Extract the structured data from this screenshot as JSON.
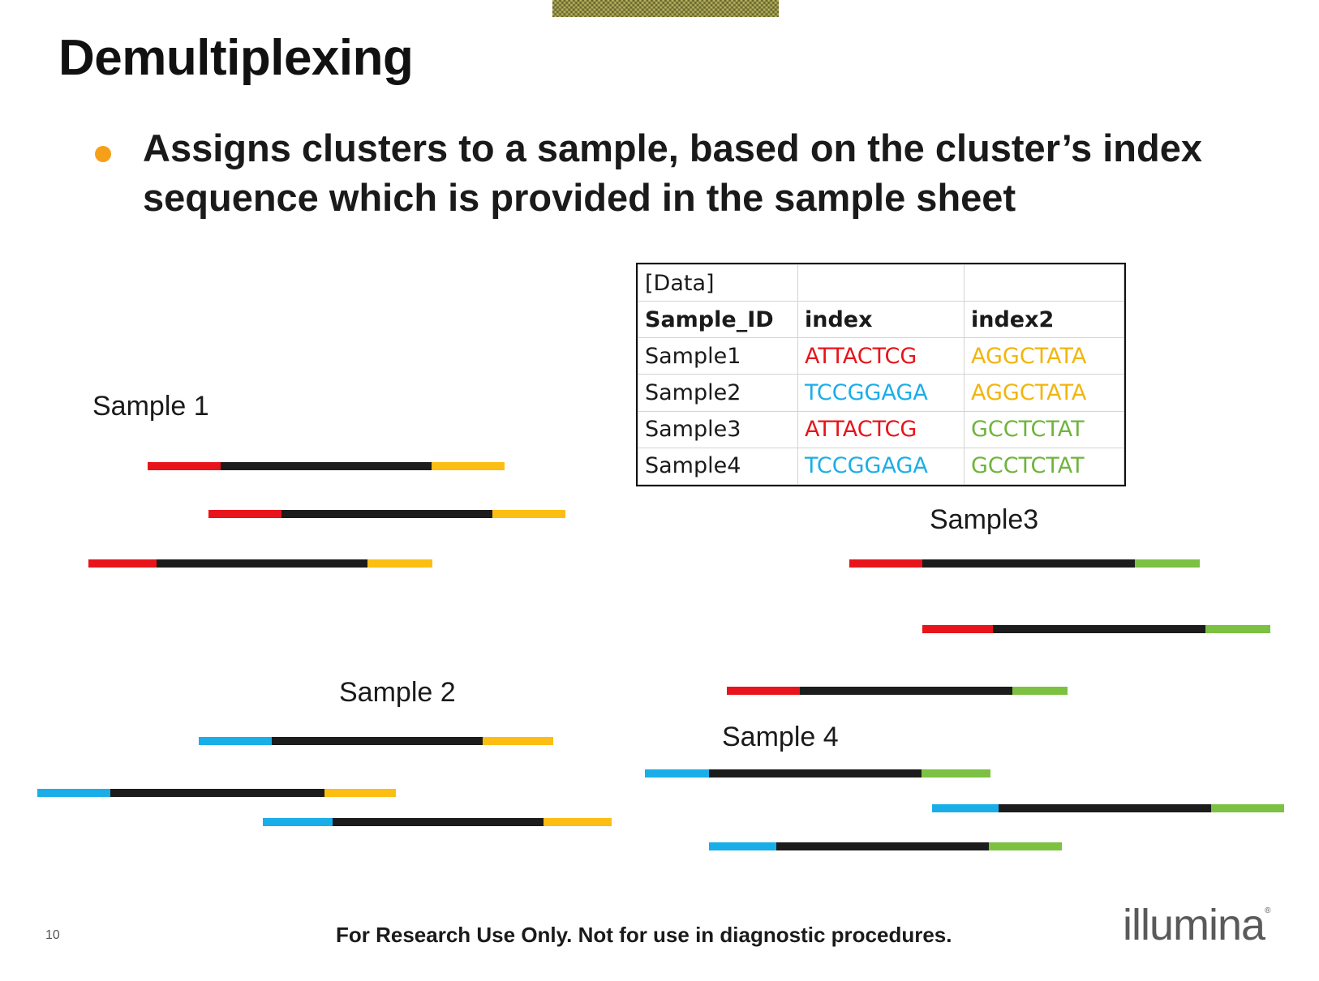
{
  "title": "Demultiplexing",
  "bullet": "Assigns clusters to a sample, based on the cluster’s index sequence which is provided in the sample sheet",
  "sheet": {
    "rows": [
      [
        "[Data]",
        "",
        ""
      ],
      [
        "Sample_ID",
        "index",
        "index2"
      ],
      [
        "Sample1",
        "ATTACTCG",
        "AGGCTATA"
      ],
      [
        "Sample2",
        "TCCGGAGA",
        "AGGCTATA"
      ],
      [
        "Sample3",
        "ATTACTCG",
        "GCCTCTAT"
      ],
      [
        "Sample4",
        "TCCGGAGA",
        "GCCTCTAT"
      ]
    ]
  },
  "groups": {
    "sample1": "Sample 1",
    "sample2": "Sample 2",
    "sample3": "Sample3",
    "sample4": "Sample 4"
  },
  "colors": {
    "index_red": "#e8141b",
    "index_blue": "#1aaee8",
    "index2_yellow": "#fcbe12",
    "index2_green": "#7cc142",
    "insert": "#1c1c1c",
    "bullet": "#f6a01a"
  },
  "footer": {
    "page_number": "10",
    "note": "For Research Use Only.  Not for use in diagnostic procedures.",
    "logo": "illumina"
  }
}
